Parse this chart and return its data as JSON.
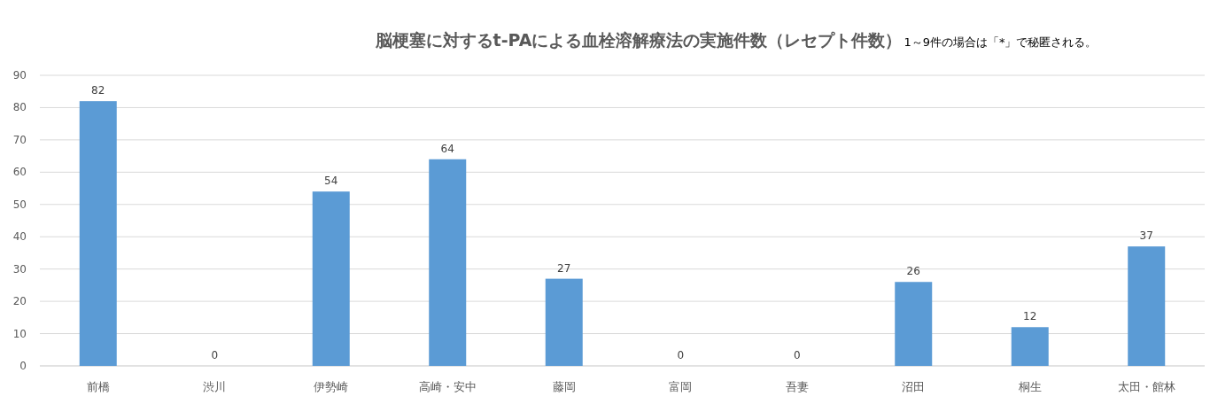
{
  "chart_data": {
    "type": "bar",
    "title": "脳梗塞に対するt-PAによる血栓溶解療法の実施件数（レセプト件数）",
    "subtitle": "1～9件の場合は「*」で秘匿される。",
    "categories": [
      "前橋",
      "渋川",
      "伊勢崎",
      "高崎・安中",
      "藤岡",
      "富岡",
      "吾妻",
      "沼田",
      "桐生",
      "太田・館林"
    ],
    "values": [
      82,
      0,
      54,
      64,
      27,
      0,
      0,
      26,
      12,
      37
    ],
    "color": "#5b9bd5",
    "ylim": [
      0,
      90
    ],
    "yticks": [
      0,
      10,
      20,
      30,
      40,
      50,
      60,
      70,
      80,
      90
    ],
    "grid": "y",
    "data_labels": true
  }
}
